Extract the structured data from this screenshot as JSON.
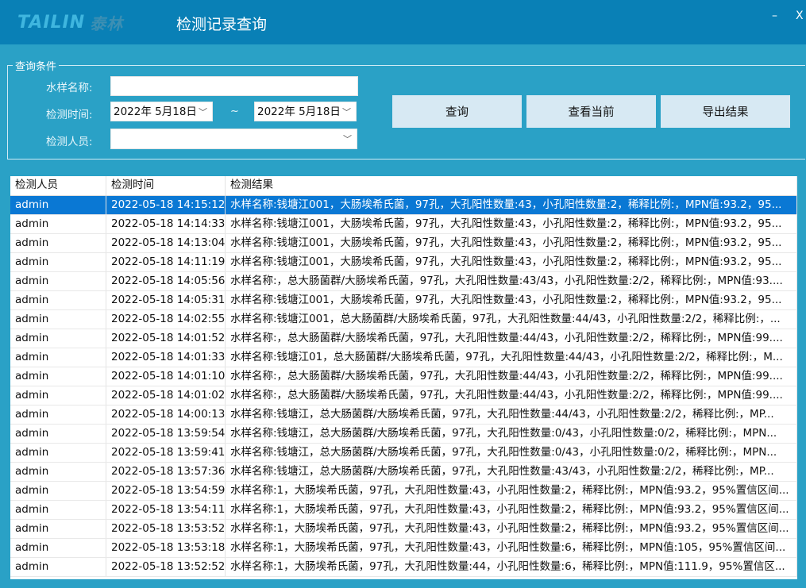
{
  "header": {
    "logo_text": "TAILIN",
    "logo_cn": "泰林",
    "title": "检测记录查询",
    "minimize": "–",
    "close": "X"
  },
  "colors": {
    "titlebar": "#0980b6",
    "background": "#2aa1c6",
    "selected_row": "#0a78d4",
    "button": "#d7e9f3"
  },
  "query": {
    "legend": "查询条件",
    "sample_label": "水样名称:",
    "sample_value": "",
    "time_label": "检测时间:",
    "date_from": "2022年  5月18日",
    "date_sep": "~",
    "date_to": "2022年  5月18日",
    "person_label": "检测人员:",
    "person_value": ""
  },
  "buttons": {
    "query": "查询",
    "view_current": "查看当前",
    "export": "导出结果"
  },
  "table": {
    "columns": [
      "检测人员",
      "检测时间",
      "检测结果"
    ],
    "rows": [
      [
        "admin",
        "2022-05-18 14:15:12",
        "水样名称:钱塘江001，大肠埃希氏菌，97孔，大孔阳性数量:43，小孔阳性数量:2，稀释比例:，MPN值:93.2，95..."
      ],
      [
        "admin",
        "2022-05-18 14:14:33",
        "水样名称:钱塘江001，大肠埃希氏菌，97孔，大孔阳性数量:43，小孔阳性数量:2，稀释比例:，MPN值:93.2，95..."
      ],
      [
        "admin",
        "2022-05-18 14:13:04",
        "水样名称:钱塘江001，大肠埃希氏菌，97孔，大孔阳性数量:43，小孔阳性数量:2，稀释比例:，MPN值:93.2，95..."
      ],
      [
        "admin",
        "2022-05-18 14:11:19",
        "水样名称:钱塘江001，大肠埃希氏菌，97孔，大孔阳性数量:43，小孔阳性数量:2，稀释比例:，MPN值:93.2，95..."
      ],
      [
        "admin",
        "2022-05-18 14:05:56",
        "水样名称:，总大肠菌群/大肠埃希氏菌，97孔，大孔阳性数量:43/43，小孔阳性数量:2/2，稀释比例:，MPN值:93...."
      ],
      [
        "admin",
        "2022-05-18 14:05:31",
        "水样名称:钱塘江001，大肠埃希氏菌，97孔，大孔阳性数量:43，小孔阳性数量:2，稀释比例:，MPN值:93.2，95..."
      ],
      [
        "admin",
        "2022-05-18 14:02:55",
        "水样名称:钱塘江001，总大肠菌群/大肠埃希氏菌，97孔，大孔阳性数量:44/43，小孔阳性数量:2/2，稀释比例:，..."
      ],
      [
        "admin",
        "2022-05-18 14:01:52",
        "水样名称:，总大肠菌群/大肠埃希氏菌，97孔，大孔阳性数量:44/43，小孔阳性数量:2/2，稀释比例:，MPN值:99...."
      ],
      [
        "admin",
        "2022-05-18 14:01:33",
        "水样名称:钱塘江01，总大肠菌群/大肠埃希氏菌，97孔，大孔阳性数量:44/43，小孔阳性数量:2/2，稀释比例:，M..."
      ],
      [
        "admin",
        "2022-05-18 14:01:10",
        "水样名称:，总大肠菌群/大肠埃希氏菌，97孔，大孔阳性数量:44/43，小孔阳性数量:2/2，稀释比例:，MPN值:99...."
      ],
      [
        "admin",
        "2022-05-18 14:01:02",
        "水样名称:，总大肠菌群/大肠埃希氏菌，97孔，大孔阳性数量:44/43，小孔阳性数量:2/2，稀释比例:，MPN值:99...."
      ],
      [
        "admin",
        "2022-05-18 14:00:13",
        "水样名称:钱塘江，总大肠菌群/大肠埃希氏菌，97孔，大孔阳性数量:44/43，小孔阳性数量:2/2，稀释比例:，MP..."
      ],
      [
        "admin",
        "2022-05-18 13:59:54",
        "水样名称:钱塘江，总大肠菌群/大肠埃希氏菌，97孔，大孔阳性数量:0/43，小孔阳性数量:0/2，稀释比例:，MPN..."
      ],
      [
        "admin",
        "2022-05-18 13:59:41",
        "水样名称:钱塘江，总大肠菌群/大肠埃希氏菌，97孔，大孔阳性数量:0/43，小孔阳性数量:0/2，稀释比例:，MPN..."
      ],
      [
        "admin",
        "2022-05-18 13:57:36",
        "水样名称:钱塘江，总大肠菌群/大肠埃希氏菌，97孔，大孔阳性数量:43/43，小孔阳性数量:2/2，稀释比例:，MP..."
      ],
      [
        "admin",
        "2022-05-18 13:54:59",
        "水样名称:1，大肠埃希氏菌，97孔，大孔阳性数量:43，小孔阳性数量:2，稀释比例:，MPN值:93.2，95%置信区间..."
      ],
      [
        "admin",
        "2022-05-18 13:54:11",
        "水样名称:1，大肠埃希氏菌，97孔，大孔阳性数量:43，小孔阳性数量:2，稀释比例:，MPN值:93.2，95%置信区间..."
      ],
      [
        "admin",
        "2022-05-18 13:53:52",
        "水样名称:1，大肠埃希氏菌，97孔，大孔阳性数量:43，小孔阳性数量:2，稀释比例:，MPN值:93.2，95%置信区间..."
      ],
      [
        "admin",
        "2022-05-18 13:53:18",
        "水样名称:1，大肠埃希氏菌，97孔，大孔阳性数量:43，小孔阳性数量:6，稀释比例:，MPN值:105，95%置信区间..."
      ],
      [
        "admin",
        "2022-05-18 13:52:52",
        "水样名称:1，大肠埃希氏菌，97孔，大孔阳性数量:44，小孔阳性数量:6，稀释比例:，MPN值:111.9，95%置信区..."
      ]
    ]
  }
}
